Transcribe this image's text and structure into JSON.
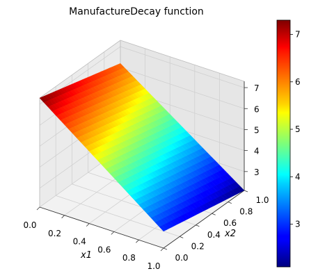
{
  "chart_data": {
    "type": "surface",
    "title": "ManufactureDecay function",
    "xlabel": "x1",
    "ylabel": "x2",
    "zlabel": "",
    "x_ticks": [
      "0.0",
      "0.2",
      "0.4",
      "0.6",
      "0.8",
      "1.0"
    ],
    "y_ticks": [
      "0.0",
      "0.2",
      "0.4",
      "0.6",
      "0.8",
      "1.0"
    ],
    "z_ticks": [
      "3",
      "4",
      "5",
      "6",
      "7"
    ],
    "xlim": [
      0,
      1
    ],
    "ylim": [
      0,
      1
    ],
    "zlim": [
      2.1,
      7.3
    ],
    "colorbar": {
      "colormap": "jet",
      "range": [
        2.1,
        7.3
      ],
      "ticks": [
        "3",
        "4",
        "5",
        "6",
        "7"
      ]
    },
    "corner_values": [
      {
        "x1": 0,
        "x2": 0,
        "z": 7.3
      },
      {
        "x1": 0,
        "x2": 1,
        "z": 6.2
      },
      {
        "x1": 1,
        "x2": 0,
        "z": 2.9
      },
      {
        "x1": 1,
        "x2": 1,
        "z": 2.1
      }
    ],
    "grid": true
  }
}
